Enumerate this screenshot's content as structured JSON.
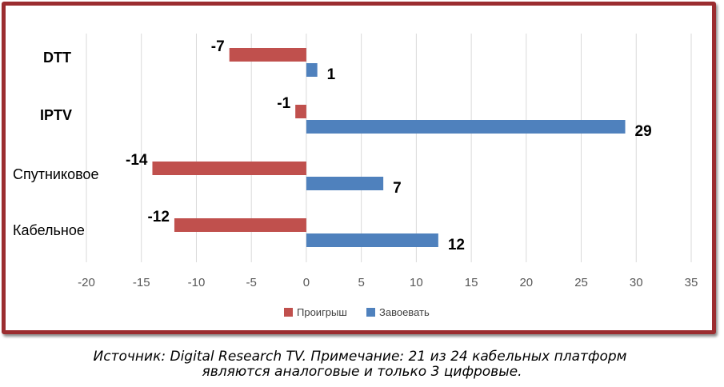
{
  "chart_data": {
    "type": "bar",
    "orientation": "horizontal",
    "categories": [
      "DTT",
      "IPTV",
      "Спутниковое",
      "Кабельное"
    ],
    "series": [
      {
        "name": "Проигрыш",
        "values": [
          -7,
          -1,
          -14,
          -12
        ],
        "color": "#c0504d"
      },
      {
        "name": "Завоевать",
        "values": [
          1,
          29,
          7,
          12
        ],
        "color": "#4f81bd"
      }
    ],
    "xlim": [
      -20,
      35
    ],
    "xticks": [
      "-20",
      "-15",
      "-10",
      "-5",
      "0",
      "5",
      "10",
      "15",
      "20",
      "25",
      "30",
      "35"
    ],
    "grid": true,
    "legend_position": "bottom",
    "title": "",
    "xlabel": "",
    "ylabel": ""
  },
  "caption": {
    "line1": "Источник: Digital Research TV. Примечание: 21 из 24 кабельных платформ",
    "line2": "являются аналоговые и только 3 цифровые."
  },
  "colors": {
    "frame": "#9b2d30",
    "grid": "#d9d9d9",
    "axis_text": "#595959"
  }
}
